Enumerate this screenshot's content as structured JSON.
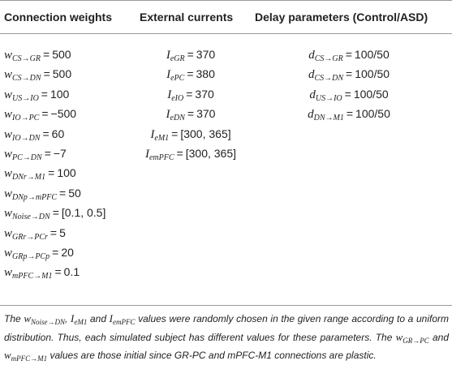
{
  "table": {
    "headers": [
      "Connection weights",
      "External currents",
      "Delay parameters (Control/ASD)"
    ],
    "weights": [
      {
        "sym": "w",
        "sub": "CS→GR",
        "rhs": "500"
      },
      {
        "sym": "w",
        "sub": "CS→DN",
        "rhs": "500"
      },
      {
        "sym": "w",
        "sub": "US→IO",
        "rhs": "100"
      },
      {
        "sym": "w",
        "sub": "IO→PC",
        "rhs": "−500"
      },
      {
        "sym": "w",
        "sub": "IO→DN",
        "rhs": "60"
      },
      {
        "sym": "w",
        "sub": "PC→DN",
        "rhs": "−7"
      },
      {
        "sym": "w",
        "sub": "DNr→M1",
        "rhs": "100"
      },
      {
        "sym": "w",
        "sub": "DNp→mPFC",
        "rhs": "50"
      },
      {
        "sym": "w",
        "sub": "Noise→DN",
        "rhs": "[0.1, 0.5]"
      },
      {
        "sym": "w",
        "sub": "GRr→PCr",
        "rhs": "5"
      },
      {
        "sym": "w",
        "sub": "GRp→PCp",
        "rhs": "20"
      },
      {
        "sym": "w",
        "sub": "mPFC→M1",
        "rhs": "0.1"
      }
    ],
    "currents": [
      {
        "sym": "I",
        "sub": "eGR",
        "rhs": "370"
      },
      {
        "sym": "I",
        "sub": "ePC",
        "rhs": "380"
      },
      {
        "sym": "I",
        "sub": "eIO",
        "rhs": "370"
      },
      {
        "sym": "I",
        "sub": "eDN",
        "rhs": "370"
      },
      {
        "sym": "I",
        "sub": "eM1",
        "rhs": "[300, 365]"
      },
      {
        "sym": "I",
        "sub": "emPFC",
        "rhs": "[300, 365]"
      }
    ],
    "delays": [
      {
        "sym": "d",
        "sub": "CS→GR",
        "rhs": "100/50"
      },
      {
        "sym": "d",
        "sub": "CS→DN",
        "rhs": "100/50"
      },
      {
        "sym": "d",
        "sub": "US→IO",
        "rhs": "100/50"
      },
      {
        "sym": "d",
        "sub": "DN→M1",
        "rhs": "100/50"
      }
    ]
  },
  "footnote": {
    "l1_a": "The ",
    "l1_v1": "w",
    "l1_s1": "Noise→DN",
    "l1_b": ", ",
    "l1_v2": "I",
    "l1_s2": "eM1",
    "l1_c": " and ",
    "l1_v3": "I",
    "l1_s3": "emPFC",
    "l1_d": " values were randomly chosen in the given range according",
    "l2": "to a uniform distribution. Thus, each simulated subject has different values for these",
    "l3_a": "parameters. The ",
    "l3_v1": "w",
    "l3_s1": "GR→PC",
    "l3_b": " and ",
    "l3_v2": "w",
    "l3_s2": "mPFC→M1",
    "l3_c": " values are those initial since GR-PC and",
    "l4": "mPFC-M1 connections are plastic."
  }
}
